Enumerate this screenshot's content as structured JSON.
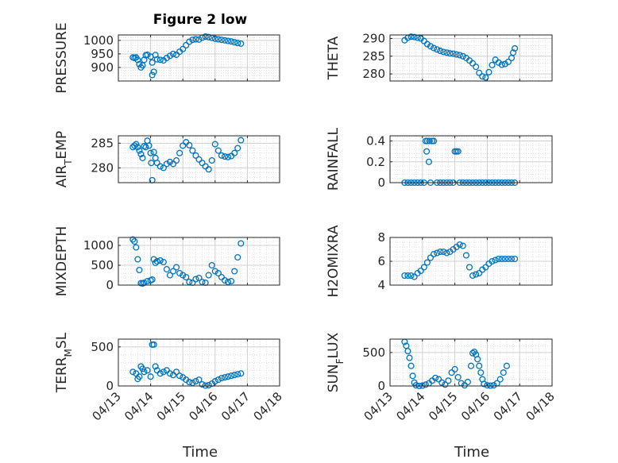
{
  "figure": {
    "title": "Figure 2 low",
    "xlabel": "Time",
    "x_ticklabels": [
      "04/13",
      "04/14",
      "04/15",
      "04/16",
      "04/17",
      "04/18"
    ],
    "marker_color": "#0072BD"
  },
  "chart_data": [
    {
      "type": "scatter",
      "name": "PRESSURE",
      "ylabel": "PRESSURE",
      "ylim": [
        850,
        1020
      ],
      "yticks": [
        900,
        950,
        1000
      ],
      "points": [
        [
          0.45,
          937
        ],
        [
          0.5,
          935
        ],
        [
          0.55,
          937
        ],
        [
          0.6,
          928
        ],
        [
          0.65,
          912
        ],
        [
          0.7,
          900
        ],
        [
          0.75,
          908
        ],
        [
          0.8,
          928
        ],
        [
          0.85,
          945
        ],
        [
          0.9,
          947
        ],
        [
          1.0,
          940
        ],
        [
          1.05,
          918
        ],
        [
          1.1,
          884
        ],
        [
          1.05,
          872
        ],
        [
          1.15,
          946
        ],
        [
          1.2,
          930
        ],
        [
          1.3,
          928
        ],
        [
          1.4,
          926
        ],
        [
          1.5,
          935
        ],
        [
          1.6,
          943
        ],
        [
          1.7,
          950
        ],
        [
          1.8,
          947
        ],
        [
          1.9,
          958
        ],
        [
          2.0,
          968
        ],
        [
          2.1,
          982
        ],
        [
          2.2,
          995
        ],
        [
          2.3,
          1002
        ],
        [
          2.4,
          1004
        ],
        [
          2.5,
          1003
        ],
        [
          2.6,
          1010
        ],
        [
          2.7,
          1014
        ],
        [
          2.8,
          1012
        ],
        [
          2.9,
          1009
        ],
        [
          3.0,
          1006
        ],
        [
          3.1,
          1004
        ],
        [
          3.2,
          1002
        ],
        [
          3.3,
          1000
        ],
        [
          3.4,
          998
        ],
        [
          3.5,
          996
        ],
        [
          3.6,
          993
        ],
        [
          3.7,
          990
        ],
        [
          3.8,
          988
        ]
      ]
    },
    {
      "type": "scatter",
      "name": "THETA",
      "ylabel": "THETA",
      "ylim": [
        278,
        291
      ],
      "yticks": [
        280,
        285,
        290
      ],
      "points": [
        [
          0.45,
          289.5
        ],
        [
          0.55,
          290.2
        ],
        [
          0.65,
          290.5
        ],
        [
          0.75,
          290.4
        ],
        [
          0.85,
          290.2
        ],
        [
          0.95,
          290.0
        ],
        [
          1.05,
          289.3
        ],
        [
          1.15,
          288.4
        ],
        [
          1.25,
          287.8
        ],
        [
          1.35,
          287.3
        ],
        [
          1.45,
          286.9
        ],
        [
          1.55,
          286.5
        ],
        [
          1.65,
          286.2
        ],
        [
          1.75,
          286.0
        ],
        [
          1.85,
          285.8
        ],
        [
          1.95,
          285.7
        ],
        [
          2.05,
          285.5
        ],
        [
          2.15,
          285.3
        ],
        [
          2.25,
          285.0
        ],
        [
          2.35,
          284.5
        ],
        [
          2.45,
          283.8
        ],
        [
          2.55,
          283.0
        ],
        [
          2.65,
          282.0
        ],
        [
          2.75,
          280.3
        ],
        [
          2.85,
          279.3
        ],
        [
          2.95,
          279.0
        ],
        [
          3.05,
          280.5
        ],
        [
          3.15,
          282.5
        ],
        [
          3.25,
          284.0
        ],
        [
          3.35,
          283.2
        ],
        [
          3.45,
          282.6
        ],
        [
          3.55,
          282.8
        ],
        [
          3.65,
          283.4
        ],
        [
          3.75,
          284.5
        ],
        [
          3.8,
          286.0
        ],
        [
          3.85,
          287.2
        ]
      ]
    },
    {
      "type": "scatter",
      "name": "AIR_TEMP",
      "ylabel": "AIR_TEMP",
      "ylim": [
        277,
        286.5
      ],
      "yticks": [
        280,
        285
      ],
      "points": [
        [
          0.45,
          284.2
        ],
        [
          0.5,
          284.5
        ],
        [
          0.55,
          284.8
        ],
        [
          0.6,
          284.2
        ],
        [
          0.65,
          283.5
        ],
        [
          0.7,
          282.8
        ],
        [
          0.75,
          282.0
        ],
        [
          0.8,
          284.4
        ],
        [
          0.85,
          284.2
        ],
        [
          0.9,
          285.5
        ],
        [
          0.95,
          284.5
        ],
        [
          1.0,
          283.0
        ],
        [
          1.02,
          281.0
        ],
        [
          1.05,
          277.5
        ],
        [
          1.1,
          283.2
        ],
        [
          1.15,
          282.0
        ],
        [
          1.2,
          281.0
        ],
        [
          1.3,
          280.3
        ],
        [
          1.4,
          280.0
        ],
        [
          1.5,
          280.8
        ],
        [
          1.6,
          281.2
        ],
        [
          1.7,
          280.8
        ],
        [
          1.8,
          281.5
        ],
        [
          1.9,
          283.0
        ],
        [
          2.0,
          284.5
        ],
        [
          2.1,
          285.2
        ],
        [
          2.2,
          284.6
        ],
        [
          2.3,
          283.5
        ],
        [
          2.4,
          282.5
        ],
        [
          2.5,
          281.7
        ],
        [
          2.6,
          281.0
        ],
        [
          2.7,
          280.3
        ],
        [
          2.8,
          279.7
        ],
        [
          2.9,
          281.5
        ],
        [
          3.0,
          284.8
        ],
        [
          3.1,
          283.5
        ],
        [
          3.2,
          282.5
        ],
        [
          3.3,
          282.3
        ],
        [
          3.4,
          282.2
        ],
        [
          3.5,
          282.4
        ],
        [
          3.6,
          283.0
        ],
        [
          3.7,
          284.0
        ],
        [
          3.8,
          285.6
        ]
      ]
    },
    {
      "type": "scatter",
      "name": "RAINFALL",
      "ylabel": "RAINFALL",
      "ylim": [
        0,
        0.45
      ],
      "yticks": [
        0,
        0.2,
        0.4
      ],
      "points": [
        [
          0.45,
          0
        ],
        [
          0.55,
          0
        ],
        [
          0.65,
          0
        ],
        [
          0.75,
          0
        ],
        [
          0.85,
          0
        ],
        [
          0.95,
          0
        ],
        [
          1.05,
          0
        ],
        [
          1.1,
          0.4
        ],
        [
          1.13,
          0.3
        ],
        [
          1.15,
          0.4
        ],
        [
          1.2,
          0.2
        ],
        [
          1.22,
          0.4
        ],
        [
          1.25,
          0
        ],
        [
          1.3,
          0.4
        ],
        [
          1.35,
          0.4
        ],
        [
          1.45,
          0
        ],
        [
          1.55,
          0
        ],
        [
          1.65,
          0
        ],
        [
          1.75,
          0
        ],
        [
          1.85,
          0
        ],
        [
          1.95,
          0
        ],
        [
          2.0,
          0.3
        ],
        [
          2.05,
          0.3
        ],
        [
          2.1,
          0.3
        ],
        [
          2.15,
          0
        ],
        [
          2.25,
          0
        ],
        [
          2.35,
          0
        ],
        [
          2.45,
          0
        ],
        [
          2.55,
          0
        ],
        [
          2.65,
          0
        ],
        [
          2.75,
          0
        ],
        [
          2.85,
          0
        ],
        [
          2.95,
          0
        ],
        [
          3.05,
          0
        ],
        [
          3.15,
          0
        ],
        [
          3.25,
          0
        ],
        [
          3.35,
          0
        ],
        [
          3.45,
          0
        ],
        [
          3.55,
          0
        ],
        [
          3.65,
          0
        ],
        [
          3.75,
          0
        ],
        [
          3.85,
          0
        ]
      ]
    },
    {
      "type": "scatter",
      "name": "MIXDEPTH",
      "ylabel": "MIXDEPTH",
      "ylim": [
        0,
        1200
      ],
      "yticks": [
        0,
        500,
        1000
      ],
      "points": [
        [
          0.45,
          1150
        ],
        [
          0.5,
          1100
        ],
        [
          0.55,
          950
        ],
        [
          0.6,
          650
        ],
        [
          0.65,
          380
        ],
        [
          0.7,
          50
        ],
        [
          0.75,
          40
        ],
        [
          0.8,
          60
        ],
        [
          0.9,
          100
        ],
        [
          1.0,
          120
        ],
        [
          1.05,
          140
        ],
        [
          1.1,
          650
        ],
        [
          1.15,
          560
        ],
        [
          1.2,
          600
        ],
        [
          1.3,
          620
        ],
        [
          1.4,
          580
        ],
        [
          1.5,
          400
        ],
        [
          1.6,
          250
        ],
        [
          1.7,
          350
        ],
        [
          1.8,
          450
        ],
        [
          1.9,
          300
        ],
        [
          2.0,
          250
        ],
        [
          2.1,
          200
        ],
        [
          2.2,
          80
        ],
        [
          2.3,
          60
        ],
        [
          2.4,
          150
        ],
        [
          2.5,
          180
        ],
        [
          2.6,
          80
        ],
        [
          2.7,
          60
        ],
        [
          2.8,
          250
        ],
        [
          2.9,
          500
        ],
        [
          3.0,
          350
        ],
        [
          3.1,
          300
        ],
        [
          3.2,
          200
        ],
        [
          3.3,
          120
        ],
        [
          3.4,
          80
        ],
        [
          3.5,
          100
        ],
        [
          3.6,
          350
        ],
        [
          3.7,
          700
        ],
        [
          3.8,
          1050
        ]
      ]
    },
    {
      "type": "scatter",
      "name": "H2OMIXRA",
      "ylabel": "H2OMIXRA",
      "ylim": [
        4,
        8
      ],
      "yticks": [
        4,
        6,
        8
      ],
      "points": [
        [
          0.45,
          4.8
        ],
        [
          0.55,
          4.8
        ],
        [
          0.65,
          4.8
        ],
        [
          0.75,
          4.7
        ],
        [
          0.85,
          5.0
        ],
        [
          0.95,
          5.2
        ],
        [
          1.05,
          5.5
        ],
        [
          1.15,
          5.9
        ],
        [
          1.25,
          6.3
        ],
        [
          1.35,
          6.6
        ],
        [
          1.45,
          6.7
        ],
        [
          1.55,
          6.8
        ],
        [
          1.65,
          6.8
        ],
        [
          1.75,
          6.7
        ],
        [
          1.85,
          6.8
        ],
        [
          1.95,
          7.0
        ],
        [
          2.05,
          7.2
        ],
        [
          2.15,
          7.4
        ],
        [
          2.25,
          7.3
        ],
        [
          2.35,
          6.5
        ],
        [
          2.45,
          5.5
        ],
        [
          2.55,
          4.8
        ],
        [
          2.65,
          4.9
        ],
        [
          2.75,
          5.0
        ],
        [
          2.85,
          5.3
        ],
        [
          2.95,
          5.5
        ],
        [
          3.05,
          5.8
        ],
        [
          3.15,
          6.0
        ],
        [
          3.25,
          6.1
        ],
        [
          3.35,
          6.2
        ],
        [
          3.45,
          6.2
        ],
        [
          3.55,
          6.2
        ],
        [
          3.65,
          6.2
        ],
        [
          3.75,
          6.2
        ],
        [
          3.85,
          6.2
        ]
      ]
    },
    {
      "type": "scatter",
      "name": "TERR_MSL",
      "ylabel": "TERR_MSL",
      "ylim": [
        0,
        600
      ],
      "yticks": [
        0,
        500
      ],
      "points": [
        [
          0.45,
          180
        ],
        [
          0.55,
          160
        ],
        [
          0.6,
          90
        ],
        [
          0.65,
          120
        ],
        [
          0.7,
          250
        ],
        [
          0.75,
          220
        ],
        [
          0.8,
          180
        ],
        [
          0.9,
          200
        ],
        [
          1.0,
          120
        ],
        [
          1.05,
          530
        ],
        [
          1.1,
          530
        ],
        [
          1.15,
          250
        ],
        [
          1.2,
          200
        ],
        [
          1.3,
          160
        ],
        [
          1.4,
          180
        ],
        [
          1.5,
          200
        ],
        [
          1.6,
          160
        ],
        [
          1.7,
          140
        ],
        [
          1.8,
          180
        ],
        [
          1.9,
          130
        ],
        [
          2.0,
          110
        ],
        [
          2.1,
          80
        ],
        [
          2.2,
          50
        ],
        [
          2.3,
          40
        ],
        [
          2.4,
          60
        ],
        [
          2.5,
          80
        ],
        [
          2.6,
          20
        ],
        [
          2.7,
          5
        ],
        [
          2.8,
          10
        ],
        [
          2.9,
          30
        ],
        [
          3.0,
          60
        ],
        [
          3.1,
          80
        ],
        [
          3.2,
          100
        ],
        [
          3.3,
          110
        ],
        [
          3.4,
          120
        ],
        [
          3.5,
          130
        ],
        [
          3.6,
          140
        ],
        [
          3.7,
          150
        ],
        [
          3.8,
          160
        ]
      ]
    },
    {
      "type": "scatter",
      "name": "SUN_FLUX",
      "ylabel": "SUN_FLUX",
      "ylim": [
        0,
        700
      ],
      "yticks": [
        0,
        500
      ],
      "points": [
        [
          0.45,
          660
        ],
        [
          0.5,
          600
        ],
        [
          0.55,
          520
        ],
        [
          0.6,
          420
        ],
        [
          0.65,
          300
        ],
        [
          0.7,
          150
        ],
        [
          0.75,
          50
        ],
        [
          0.8,
          10
        ],
        [
          0.9,
          0
        ],
        [
          1.0,
          5
        ],
        [
          1.1,
          20
        ],
        [
          1.2,
          40
        ],
        [
          1.3,
          80
        ],
        [
          1.4,
          120
        ],
        [
          1.5,
          100
        ],
        [
          1.6,
          50
        ],
        [
          1.7,
          20
        ],
        [
          1.8,
          80
        ],
        [
          1.9,
          200
        ],
        [
          2.0,
          250
        ],
        [
          2.1,
          130
        ],
        [
          2.2,
          40
        ],
        [
          2.3,
          10
        ],
        [
          2.4,
          60
        ],
        [
          2.5,
          300
        ],
        [
          2.55,
          490
        ],
        [
          2.6,
          510
        ],
        [
          2.65,
          470
        ],
        [
          2.7,
          400
        ],
        [
          2.75,
          300
        ],
        [
          2.8,
          200
        ],
        [
          2.85,
          100
        ],
        [
          2.9,
          30
        ],
        [
          3.0,
          10
        ],
        [
          3.1,
          5
        ],
        [
          3.2,
          10
        ],
        [
          3.3,
          40
        ],
        [
          3.4,
          100
        ],
        [
          3.5,
          200
        ],
        [
          3.6,
          300
        ]
      ]
    }
  ]
}
